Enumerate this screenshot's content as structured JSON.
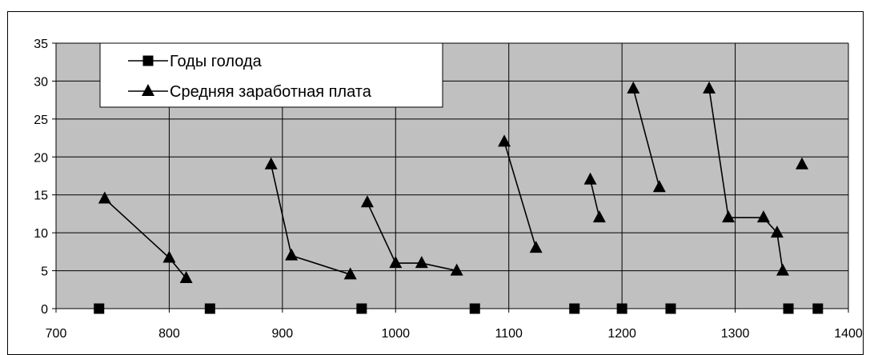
{
  "chart_data": {
    "type": "line",
    "title": "",
    "xlabel": "",
    "ylabel": "",
    "xlim": [
      700,
      1400
    ],
    "ylim": [
      0,
      35
    ],
    "x_ticks": [
      700,
      800,
      900,
      1000,
      1100,
      1200,
      1300,
      1400
    ],
    "y_ticks": [
      0,
      5,
      10,
      15,
      20,
      25,
      30,
      35
    ],
    "grid": true,
    "legend_position": "top-left",
    "series": [
      {
        "name": "Годы голода",
        "marker": "square",
        "connected": false,
        "points": [
          [
            738,
            0
          ],
          [
            836,
            0
          ],
          [
            970,
            0
          ],
          [
            1070,
            0
          ],
          [
            1158,
            0
          ],
          [
            1200,
            0
          ],
          [
            1243,
            0
          ],
          [
            1347,
            0
          ],
          [
            1373,
            0
          ]
        ]
      },
      {
        "name": "Средняя заработная плата",
        "marker": "triangle",
        "segments": [
          [
            [
              743,
              14.5
            ],
            [
              800,
              6.7
            ],
            [
              815,
              4
            ]
          ],
          [
            [
              890,
              19
            ],
            [
              908,
              7
            ],
            [
              960,
              4.5
            ]
          ],
          [
            [
              975,
              14
            ],
            [
              1000,
              6
            ],
            [
              1023,
              6
            ],
            [
              1054,
              5
            ]
          ],
          [
            [
              1096,
              22
            ],
            [
              1124,
              8
            ]
          ],
          [
            [
              1172,
              17
            ],
            [
              1180,
              12
            ]
          ],
          [
            [
              1210,
              29
            ],
            [
              1233,
              16
            ]
          ],
          [
            [
              1277,
              29
            ],
            [
              1294,
              12
            ],
            [
              1325,
              12
            ],
            [
              1337,
              10
            ],
            [
              1342,
              5
            ]
          ],
          [
            [
              1359,
              19
            ]
          ]
        ]
      }
    ]
  },
  "colors": {
    "plot_background": "#c0c0c0",
    "gridline": "#000000",
    "series": "#000000",
    "legend_background": "#ffffff"
  }
}
